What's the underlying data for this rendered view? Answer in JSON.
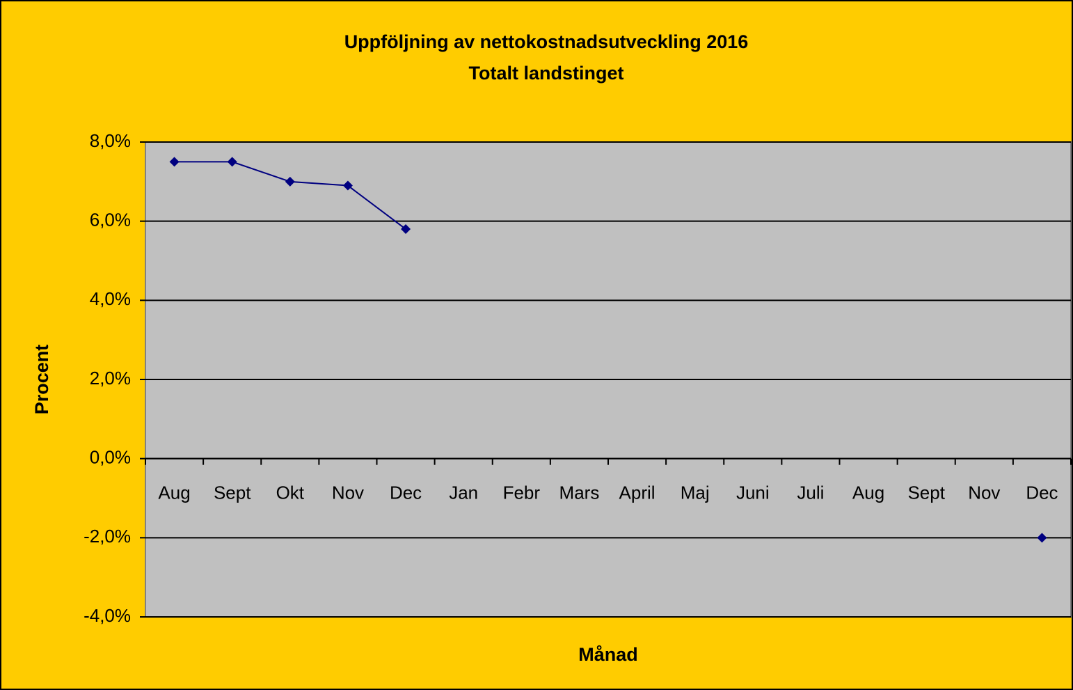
{
  "chart_data": {
    "type": "line",
    "title": "Uppföljning av nettokostnadsutveckling 2016",
    "subtitle": "Totalt landstinget",
    "x_label": "Månad",
    "y_label": "Procent",
    "categories": [
      "Aug",
      "Sept",
      "Okt",
      "Nov",
      "Dec",
      "Jan",
      "Febr",
      "Mars",
      "April",
      "Maj",
      "Juni",
      "Juli",
      "Aug",
      "Sept",
      "Nov",
      "Dec"
    ],
    "series": [
      {
        "color": "#000080",
        "values": [
          7.5,
          7.5,
          7.0,
          6.9,
          5.8,
          null,
          null,
          null,
          null,
          null,
          null,
          null,
          null,
          null,
          null,
          -2.0
        ]
      }
    ],
    "ylim": [
      -4,
      8
    ],
    "yticks": [
      {
        "value": -4,
        "label": "-4,0%"
      },
      {
        "value": -2,
        "label": "-2,0%"
      },
      {
        "value": 0,
        "label": "0,0%"
      },
      {
        "value": 2,
        "label": "2,0%"
      },
      {
        "value": 4,
        "label": "4,0%"
      },
      {
        "value": 6,
        "label": "6,0%"
      },
      {
        "value": 8,
        "label": "8,0%"
      }
    ],
    "grid": true
  }
}
